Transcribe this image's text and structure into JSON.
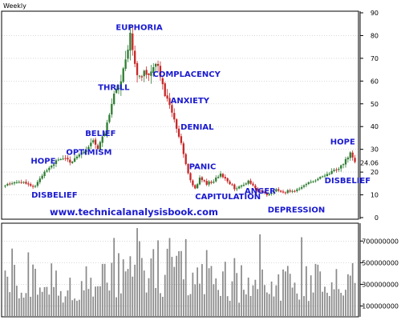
{
  "period_label": "Weekly",
  "website": "www.technicalanalysisbook.com",
  "colors": {
    "phase_text": "#1a1ad0",
    "up_candle": "#2e7d32",
    "down_candle": "#c62828",
    "volume_bar": "#8a8a8a",
    "grid": "#c0c0c0",
    "axis": "#000000"
  },
  "chart_data": [
    {
      "type": "candlestick",
      "title": "",
      "xlabel": "",
      "ylabel": "",
      "ylim": [
        0,
        90
      ],
      "y_ticks": [
        0,
        10,
        20,
        30,
        40,
        50,
        60,
        70,
        80,
        90
      ],
      "last_price": 24.06,
      "grid": true,
      "approx_close_path": [
        {
          "i": 0,
          "close": 14
        },
        {
          "i": 6,
          "close": 16
        },
        {
          "i": 10,
          "close": 15
        },
        {
          "i": 12,
          "close": 13
        },
        {
          "i": 15,
          "close": 17
        },
        {
          "i": 18,
          "close": 21
        },
        {
          "i": 20,
          "close": 23
        },
        {
          "i": 22,
          "close": 25
        },
        {
          "i": 26,
          "close": 26
        },
        {
          "i": 28,
          "close": 24
        },
        {
          "i": 31,
          "close": 27
        },
        {
          "i": 33,
          "close": 29
        },
        {
          "i": 36,
          "close": 31
        },
        {
          "i": 38,
          "close": 33
        },
        {
          "i": 40,
          "close": 31
        },
        {
          "i": 43,
          "close": 37
        },
        {
          "i": 45,
          "close": 45
        },
        {
          "i": 47,
          "close": 54
        },
        {
          "i": 50,
          "close": 60
        },
        {
          "i": 52,
          "close": 68
        },
        {
          "i": 54,
          "close": 79
        },
        {
          "i": 56,
          "close": 66
        },
        {
          "i": 58,
          "close": 62
        },
        {
          "i": 60,
          "close": 65
        },
        {
          "i": 62,
          "close": 63
        },
        {
          "i": 64,
          "close": 66
        },
        {
          "i": 66,
          "close": 67
        },
        {
          "i": 68,
          "close": 58
        },
        {
          "i": 70,
          "close": 52
        },
        {
          "i": 72,
          "close": 46
        },
        {
          "i": 74,
          "close": 40
        },
        {
          "i": 76,
          "close": 32
        },
        {
          "i": 78,
          "close": 24
        },
        {
          "i": 80,
          "close": 16
        },
        {
          "i": 82,
          "close": 13
        },
        {
          "i": 84,
          "close": 17
        },
        {
          "i": 87,
          "close": 15
        },
        {
          "i": 90,
          "close": 16
        },
        {
          "i": 93,
          "close": 19
        },
        {
          "i": 96,
          "close": 16
        },
        {
          "i": 99,
          "close": 13
        },
        {
          "i": 102,
          "close": 14
        },
        {
          "i": 105,
          "close": 16
        },
        {
          "i": 108,
          "close": 13
        },
        {
          "i": 111,
          "close": 11
        },
        {
          "i": 114,
          "close": 10
        },
        {
          "i": 117,
          "close": 12
        },
        {
          "i": 120,
          "close": 11
        },
        {
          "i": 123,
          "close": 12
        },
        {
          "i": 126,
          "close": 12
        },
        {
          "i": 129,
          "close": 14
        },
        {
          "i": 132,
          "close": 16
        },
        {
          "i": 135,
          "close": 17
        },
        {
          "i": 138,
          "close": 18
        },
        {
          "i": 141,
          "close": 20
        },
        {
          "i": 144,
          "close": 22
        },
        {
          "i": 147,
          "close": 25
        },
        {
          "i": 149,
          "close": 28
        },
        {
          "i": 151,
          "close": 24
        }
      ],
      "annotations": [
        {
          "text": "DISBELIEF",
          "i": 12,
          "price": 13
        },
        {
          "text": "HOPE",
          "i": 18,
          "price": 21
        },
        {
          "text": "OPTIMISM",
          "i": 28,
          "price": 24
        },
        {
          "text": "BELIEF",
          "i": 38,
          "price": 33
        },
        {
          "text": "THRILL",
          "i": 47,
          "price": 54
        },
        {
          "text": "EUPHORIA",
          "i": 54,
          "price": 79
        },
        {
          "text": "COMPLACENCY",
          "i": 62,
          "price": 63
        },
        {
          "text": "ANXIETY",
          "i": 70,
          "price": 52
        },
        {
          "text": "DENIAL",
          "i": 74,
          "price": 40
        },
        {
          "text": "PANIC",
          "i": 78,
          "price": 24
        },
        {
          "text": "CAPITULATION",
          "i": 82,
          "price": 13
        },
        {
          "text": "ANGER",
          "i": 102,
          "price": 14
        },
        {
          "text": "DEPRESSION",
          "i": 114,
          "price": 10
        },
        {
          "text": "DISBELIEF",
          "i": 141,
          "price": 20
        },
        {
          "text": "HOPE",
          "i": 149,
          "price": 28
        }
      ]
    },
    {
      "type": "bar",
      "title": "",
      "xlabel": "",
      "ylabel": "",
      "ylim": [
        0,
        850000000
      ],
      "y_ticks": [
        100000000,
        300000000,
        500000000,
        700000000
      ]
    }
  ]
}
